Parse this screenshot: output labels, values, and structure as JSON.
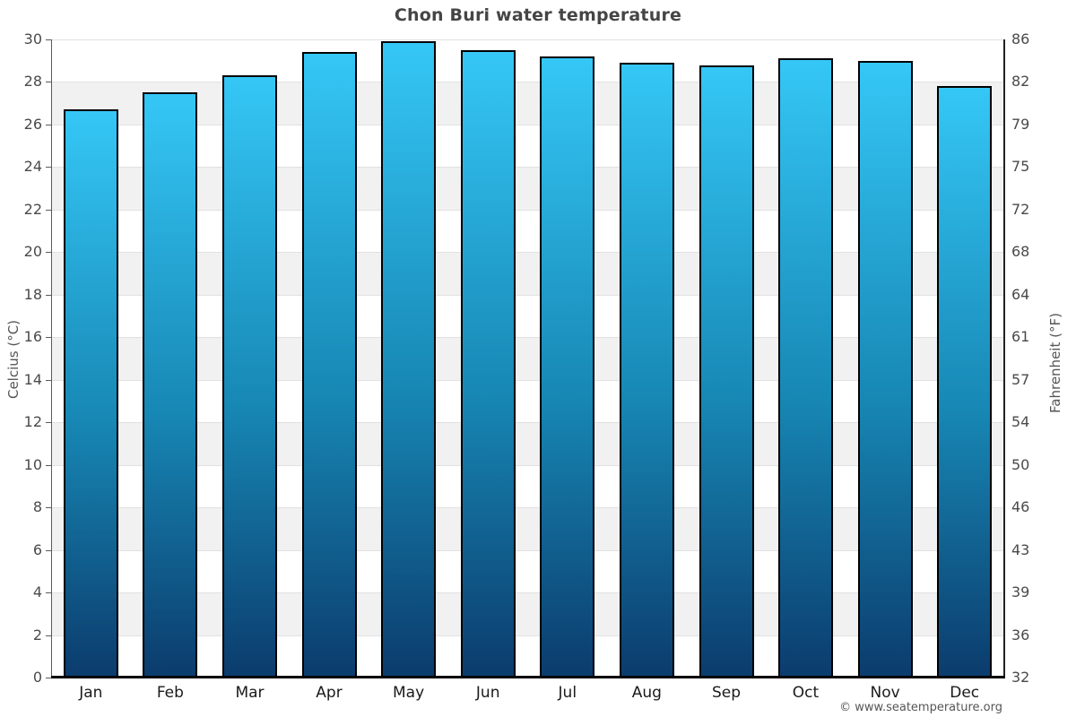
{
  "page": {
    "title": "Chon Buri water temperature",
    "footer": "© www.seatemperature.org"
  },
  "chart_data": {
    "type": "bar",
    "title": "Chon Buri water temperature",
    "categories": [
      "Jan",
      "Feb",
      "Mar",
      "Apr",
      "May",
      "Jun",
      "Jul",
      "Aug",
      "Sep",
      "Oct",
      "Nov",
      "Dec"
    ],
    "values": [
      26.7,
      27.5,
      28.3,
      29.4,
      29.9,
      29.5,
      29.2,
      28.9,
      28.8,
      29.1,
      29.0,
      27.8
    ],
    "series_name": "Water temperature (°C)",
    "xlabel": "",
    "ylabel_left": "Celcius (°C)",
    "ylabel_right": "Fahrenheit (°F)",
    "ylim": [
      0,
      30
    ],
    "y_left_ticks": [
      0,
      2,
      4,
      6,
      8,
      10,
      12,
      14,
      16,
      18,
      20,
      22,
      24,
      26,
      28,
      30
    ],
    "y_right_tick_labels": [
      "32",
      "36",
      "39",
      "43",
      "46",
      "50",
      "54",
      "57",
      "61",
      "64",
      "68",
      "72",
      "75",
      "79",
      "82",
      "86"
    ],
    "grid": "horizontal gridlines every 2°C with alternating white / light-gray bands",
    "legend": "none",
    "colors": {
      "bar_gradient_top": "#35c7f6",
      "bar_gradient_bottom": "#0b3c6d",
      "bar_border": "#000000",
      "band_gray": "#f1f1f1",
      "gridline": "#e1e1e1",
      "axis_line": "#5a5a5a",
      "bottom_axis": "#000000",
      "title_color": "#454545",
      "tick_label_color": "#4a4a4a",
      "month_label_color": "#1a1a1a",
      "footer_color": "#555555"
    }
  }
}
